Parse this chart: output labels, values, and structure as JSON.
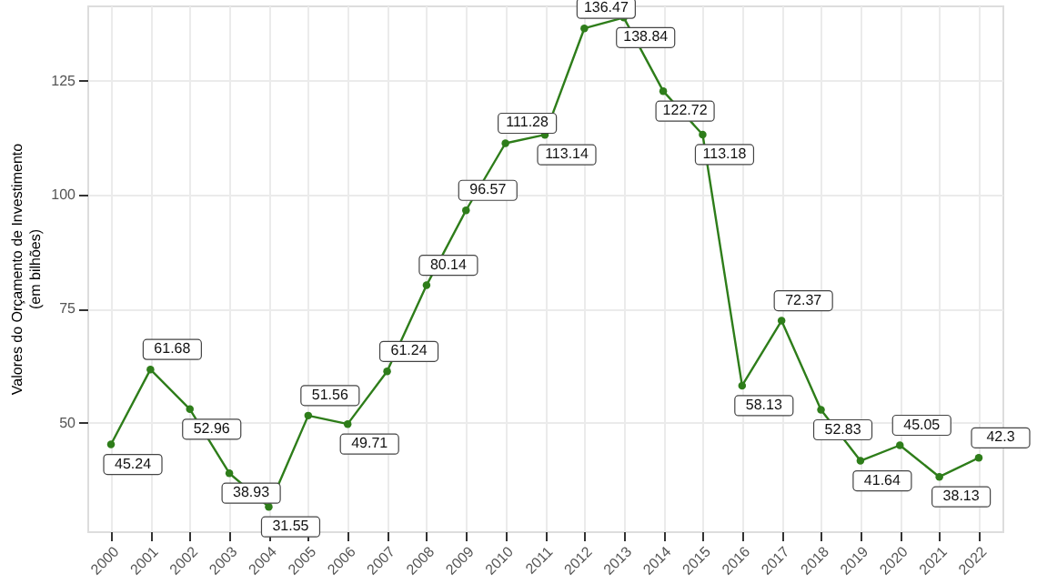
{
  "chart_data": {
    "type": "line",
    "ylabel": "Valores do Orçamento de Investimento\n(em bilhões)",
    "categories": [
      "2000",
      "2001",
      "2002",
      "2003",
      "2004",
      "2005",
      "2006",
      "2007",
      "2008",
      "2009",
      "2010",
      "2011",
      "2012",
      "2013",
      "2014",
      "2015",
      "2016",
      "2017",
      "2018",
      "2019",
      "2020",
      "2021",
      "2022"
    ],
    "series": [
      {
        "color": "#2e7d1a",
        "values": [
          45.24,
          61.68,
          52.96,
          38.93,
          31.55,
          51.56,
          49.71,
          61.24,
          80.14,
          96.57,
          111.28,
          113.14,
          136.47,
          138.84,
          122.72,
          113.18,
          58.13,
          72.37,
          52.83,
          41.64,
          45.05,
          38.13,
          42.3
        ]
      }
    ],
    "ylim": [
      26.2,
      141.5
    ],
    "yticks": [
      50,
      75,
      100,
      125
    ],
    "grid": true,
    "marker": "circle",
    "line_style": "solid",
    "data_labels": true
  }
}
